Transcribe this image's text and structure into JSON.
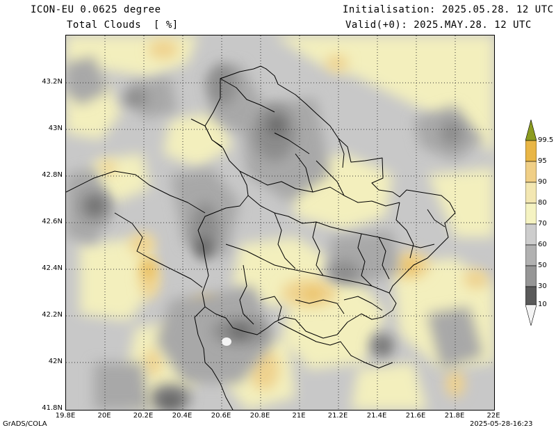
{
  "header": {
    "model": "ICON-EU 0.0625 degree",
    "field": "Total Clouds  [ %]",
    "init": "Initialisation: 2025.05.28. 12 UTC",
    "valid": "Valid(+0): 2025.MAY.28. 12 UTC"
  },
  "axes": {
    "lat_labels": [
      "43.2N",
      "43N",
      "42.8N",
      "42.6N",
      "42.4N",
      "42.2N",
      "42N",
      "41.8N"
    ],
    "lon_labels": [
      "19.8E",
      "20E",
      "20.2E",
      "20.4E",
      "20.6E",
      "20.8E",
      "21E",
      "21.2E",
      "21.4E",
      "21.6E",
      "21.8E",
      "22E"
    ],
    "lat_range": [
      41.8,
      43.4
    ],
    "lon_range": [
      19.8,
      22.0
    ]
  },
  "colorbar": {
    "levels": [
      "99.5",
      "95",
      "90",
      "80",
      "70",
      "60",
      "50",
      "30",
      "10"
    ],
    "colors": {
      "over": "#8c9c20",
      "l95": "#e9b646",
      "l90": "#f0cf86",
      "l80": "#f3e7b2",
      "l70": "#f5f3c2",
      "l60": "#cdcdcd",
      "l50": "#b1b1b1",
      "l30": "#969696",
      "l10": "#5a5a5a",
      "under": "#f4f4f4"
    }
  },
  "footer": {
    "software": "GrADS/COLA",
    "timestamp": "2025-05-28-16:23"
  }
}
